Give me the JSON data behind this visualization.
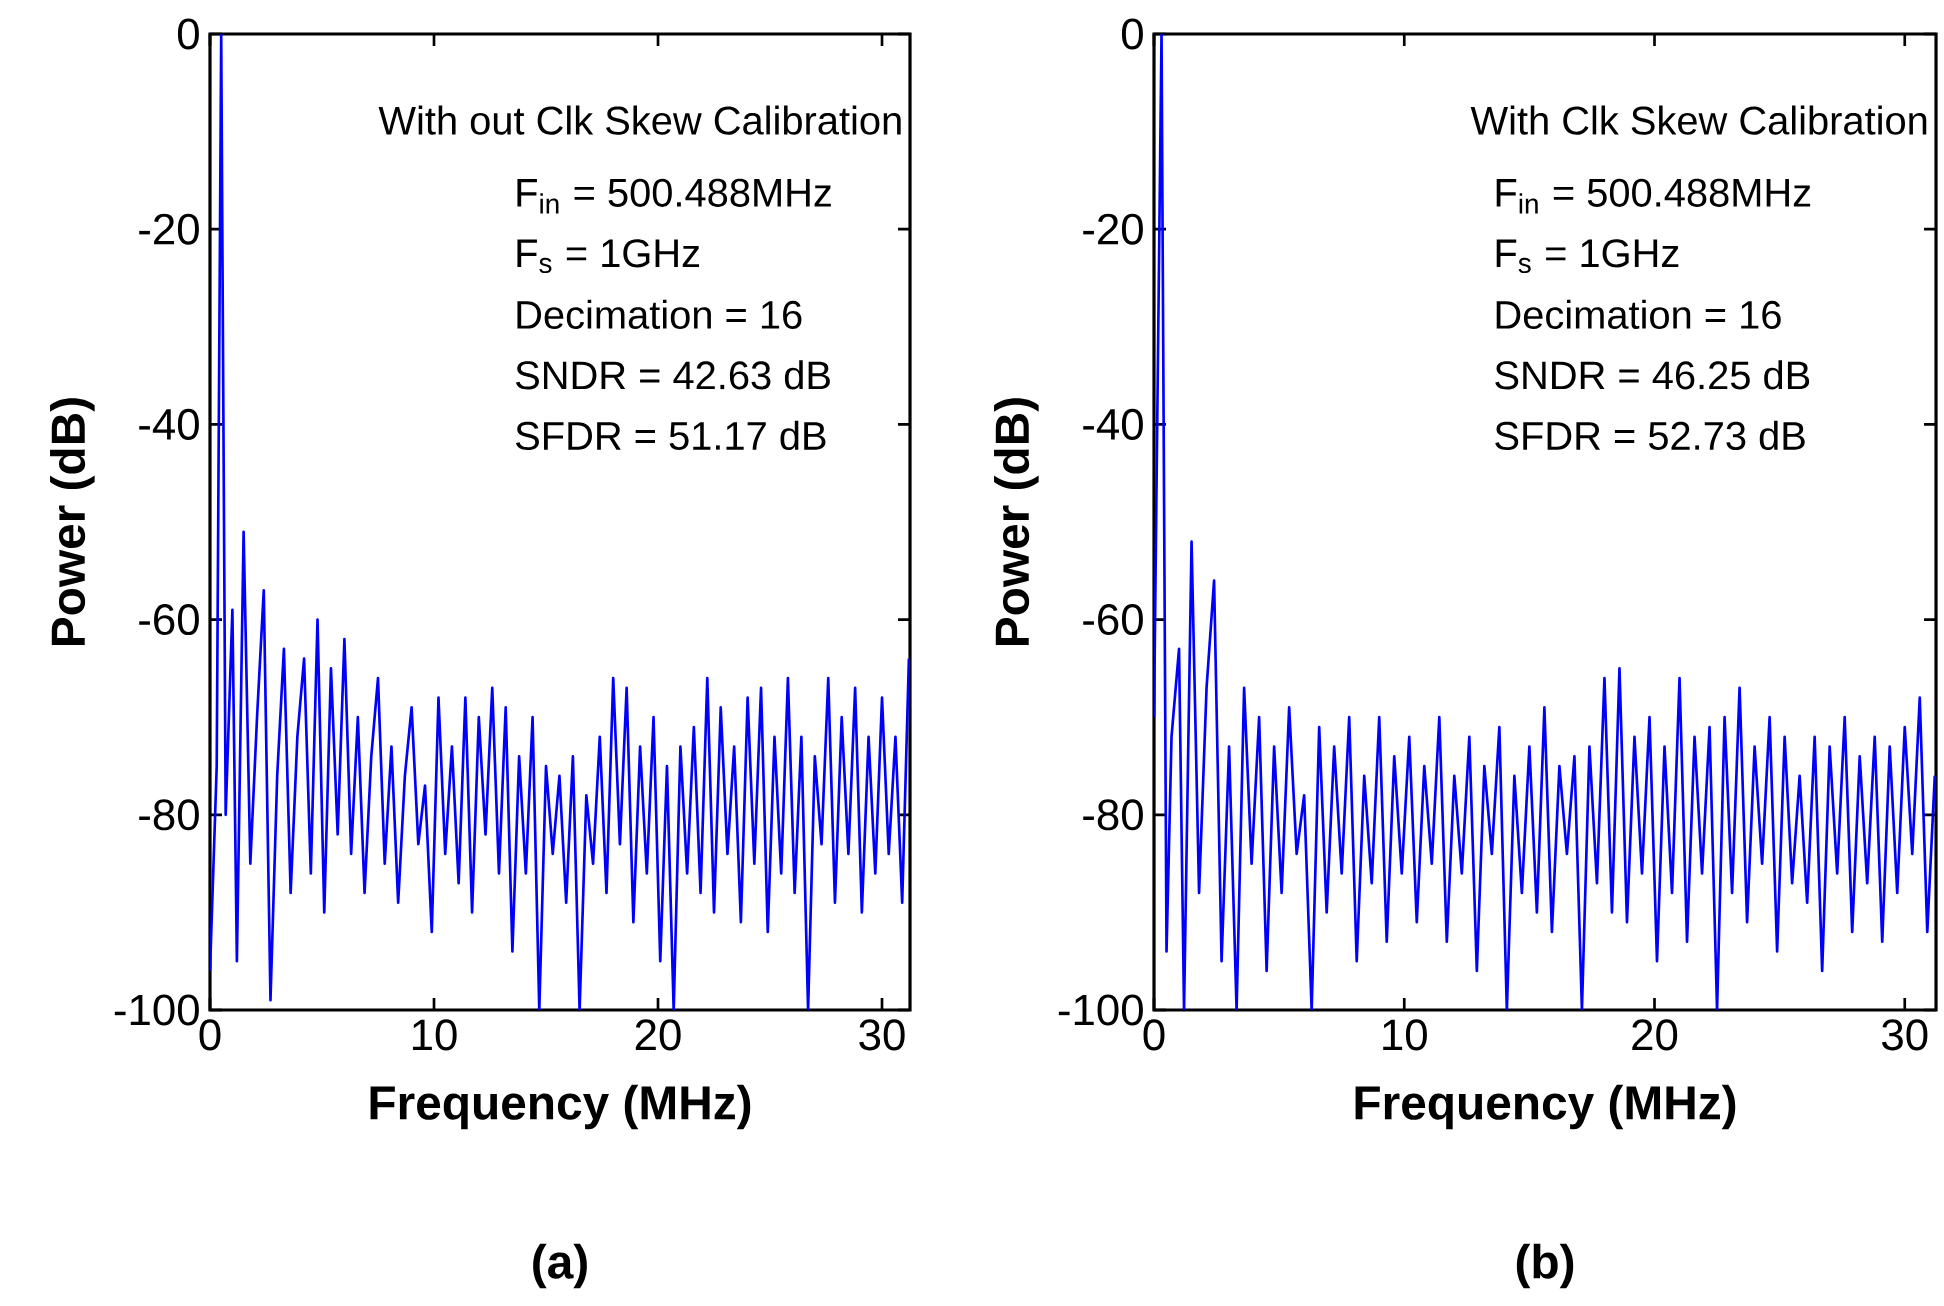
{
  "chart_data": [
    {
      "type": "line",
      "xlabel": "Frequency (MHz)",
      "ylabel": "Power (dB)",
      "xlim": [
        0,
        31.25
      ],
      "ylim": [
        -100,
        0
      ],
      "xticks": [
        0,
        10,
        20,
        30
      ],
      "yticks": [
        -100,
        -80,
        -60,
        -40,
        -20,
        0
      ],
      "annotations": [
        "With out Clk Skew Calibration",
        "F$_{in}$ = 500.488MHz",
        "F$_{s}$ = 1GHz",
        "Decimation = 16",
        "SNDR = 42.63 dB",
        "SFDR = 51.17 dB",
        "(a)"
      ],
      "series": [
        {
          "color": "#0000ff",
          "x": [
            0,
            0.3,
            0.5,
            0.7,
            1.0,
            1.2,
            1.5,
            1.8,
            2.1,
            2.4,
            2.7,
            3.0,
            3.3,
            3.6,
            3.9,
            4.2,
            4.5,
            4.8,
            5.1,
            5.4,
            5.7,
            6.0,
            6.3,
            6.6,
            6.9,
            7.2,
            7.5,
            7.8,
            8.1,
            8.4,
            8.7,
            9.0,
            9.3,
            9.6,
            9.9,
            10.2,
            10.5,
            10.8,
            11.1,
            11.4,
            11.7,
            12.0,
            12.3,
            12.6,
            12.9,
            13.2,
            13.5,
            13.8,
            14.1,
            14.4,
            14.7,
            15.0,
            15.3,
            15.6,
            15.9,
            16.2,
            16.5,
            16.8,
            17.1,
            17.4,
            17.7,
            18.0,
            18.3,
            18.6,
            18.9,
            19.2,
            19.5,
            19.8,
            20.1,
            20.4,
            20.7,
            21.0,
            21.3,
            21.6,
            21.9,
            22.2,
            22.5,
            22.8,
            23.1,
            23.4,
            23.7,
            24.0,
            24.3,
            24.6,
            24.9,
            25.2,
            25.5,
            25.8,
            26.1,
            26.4,
            26.7,
            27.0,
            27.3,
            27.6,
            27.9,
            28.2,
            28.5,
            28.8,
            29.1,
            29.4,
            29.7,
            30.0,
            30.3,
            30.6,
            30.9,
            31.2
          ],
          "values": [
            -96,
            -75,
            0,
            -80,
            -59,
            -95,
            -51,
            -85,
            -70,
            -57,
            -99,
            -76,
            -63,
            -88,
            -72,
            -64,
            -86,
            -60,
            -90,
            -65,
            -82,
            -62,
            -84,
            -70,
            -88,
            -74,
            -66,
            -85,
            -73,
            -89,
            -76,
            -69,
            -83,
            -77,
            -92,
            -68,
            -84,
            -73,
            -87,
            -68,
            -90,
            -70,
            -82,
            -67,
            -86,
            -69,
            -94,
            -74,
            -86,
            -70,
            -100,
            -75,
            -84,
            -76,
            -89,
            -74,
            -100,
            -78,
            -85,
            -72,
            -88,
            -66,
            -83,
            -67,
            -91,
            -73,
            -86,
            -70,
            -95,
            -75,
            -100,
            -73,
            -86,
            -71,
            -88,
            -66,
            -90,
            -69,
            -84,
            -73,
            -91,
            -68,
            -85,
            -67,
            -92,
            -72,
            -86,
            -66,
            -88,
            -72,
            -100,
            -74,
            -83,
            -66,
            -89,
            -70,
            -84,
            -67,
            -90,
            -72,
            -86,
            -68,
            -84,
            -72,
            -89,
            -64
          ]
        }
      ]
    },
    {
      "type": "line",
      "xlabel": "Frequency (MHz)",
      "ylabel": "Power (dB)",
      "xlim": [
        0,
        31.25
      ],
      "ylim": [
        -100,
        0
      ],
      "xticks": [
        0,
        10,
        20,
        30
      ],
      "yticks": [
        -100,
        -80,
        -60,
        -40,
        -20,
        0
      ],
      "annotations": [
        "With Clk Skew Calibration",
        "F$_{in}$ = 500.488MHz",
        "F$_{s}$ = 1GHz",
        "Decimation = 16",
        "SNDR = 46.25 dB",
        "SFDR = 52.73 dB",
        "(b)"
      ],
      "series": [
        {
          "color": "#0000ff",
          "x": [
            0,
            0.3,
            0.5,
            0.7,
            1.0,
            1.2,
            1.5,
            1.8,
            2.1,
            2.4,
            2.7,
            3.0,
            3.3,
            3.6,
            3.9,
            4.2,
            4.5,
            4.8,
            5.1,
            5.4,
            5.7,
            6.0,
            6.3,
            6.6,
            6.9,
            7.2,
            7.5,
            7.8,
            8.1,
            8.4,
            8.7,
            9.0,
            9.3,
            9.6,
            9.9,
            10.2,
            10.5,
            10.8,
            11.1,
            11.4,
            11.7,
            12.0,
            12.3,
            12.6,
            12.9,
            13.2,
            13.5,
            13.8,
            14.1,
            14.4,
            14.7,
            15.0,
            15.3,
            15.6,
            15.9,
            16.2,
            16.5,
            16.8,
            17.1,
            17.4,
            17.7,
            18.0,
            18.3,
            18.6,
            18.9,
            19.2,
            19.5,
            19.8,
            20.1,
            20.4,
            20.7,
            21.0,
            21.3,
            21.6,
            21.9,
            22.2,
            22.5,
            22.8,
            23.1,
            23.4,
            23.7,
            24.0,
            24.3,
            24.6,
            24.9,
            25.2,
            25.5,
            25.8,
            26.1,
            26.4,
            26.7,
            27.0,
            27.3,
            27.6,
            27.9,
            28.2,
            28.5,
            28.8,
            29.1,
            29.4,
            29.7,
            30.0,
            30.3,
            30.6,
            30.9,
            31.2
          ],
          "values": [
            -70,
            0,
            -94,
            -72,
            -63,
            -100,
            -52,
            -88,
            -67,
            -56,
            -95,
            -73,
            -100,
            -67,
            -85,
            -70,
            -96,
            -73,
            -88,
            -69,
            -84,
            -78,
            -100,
            -71,
            -90,
            -73,
            -86,
            -70,
            -95,
            -76,
            -87,
            -70,
            -93,
            -74,
            -86,
            -72,
            -91,
            -75,
            -85,
            -70,
            -93,
            -76,
            -86,
            -72,
            -96,
            -75,
            -84,
            -71,
            -100,
            -76,
            -88,
            -73,
            -90,
            -69,
            -92,
            -75,
            -84,
            -74,
            -100,
            -73,
            -87,
            -66,
            -90,
            -65,
            -91,
            -72,
            -86,
            -70,
            -95,
            -73,
            -88,
            -66,
            -93,
            -72,
            -86,
            -71,
            -100,
            -70,
            -88,
            -67,
            -91,
            -73,
            -85,
            -70,
            -94,
            -72,
            -87,
            -76,
            -89,
            -72,
            -96,
            -73,
            -86,
            -70,
            -92,
            -74,
            -87,
            -72,
            -93,
            -73,
            -88,
            -71,
            -84,
            -68,
            -92,
            -76
          ]
        }
      ]
    }
  ]
}
